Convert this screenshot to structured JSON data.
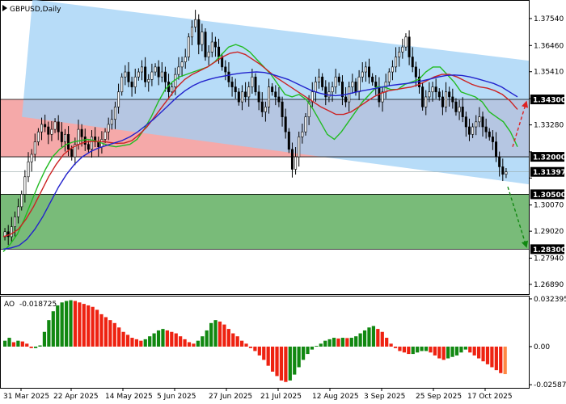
{
  "chart_data": [
    {
      "type": "candlestick",
      "title": "GBPUSD,Daily",
      "ylim": [
        1.265,
        1.3825
      ],
      "x_ticks": [
        "31 Mar 2025",
        "22 Apr 2025",
        "14 May 2025",
        "5 Jun 2025",
        "27 Jun 2025",
        "21 Jul 2025",
        "12 Aug 2025",
        "3 Sep 2025",
        "25 Sep 2025",
        "17 Oct 2025"
      ],
      "y_ticks": [
        "1.37540",
        "1.36460",
        "1.35410",
        "1.34330",
        "1.33280",
        "1.32200",
        "1.31150",
        "1.30070",
        "1.29020",
        "1.27940",
        "1.26890"
      ],
      "price_tags": [
        {
          "label": "1.34300",
          "value": 1.343
        },
        {
          "label": "1.32000",
          "value": 1.32
        },
        {
          "label": "1.31397",
          "value": 1.31397
        },
        {
          "label": "1.30500",
          "value": 1.305
        },
        {
          "label": "1.28300",
          "value": 1.283
        }
      ],
      "current_price": 1.31397,
      "zones": [
        {
          "name": "resistance-zone",
          "from": 1.32,
          "to": 1.343,
          "color": "#f4a0a0"
        },
        {
          "name": "support-zone",
          "from": 1.283,
          "to": 1.305,
          "color": "#6ab46a"
        }
      ],
      "channel": {
        "upper": [
          [
            0.06,
            1.383
          ],
          [
            1.0,
            1.3585
          ]
        ],
        "lower": [
          [
            0.04,
            1.336
          ],
          [
            1.0,
            1.309
          ]
        ],
        "color": "#9fd0f5"
      },
      "closes": [
        1.29,
        1.288,
        1.292,
        1.296,
        1.3,
        1.305,
        1.312,
        1.318,
        1.321,
        1.326,
        1.33,
        1.333,
        1.332,
        1.329,
        1.331,
        1.334,
        1.33,
        1.326,
        1.329,
        1.323,
        1.32,
        1.325,
        1.331,
        1.328,
        1.325,
        1.323,
        1.328,
        1.326,
        1.324,
        1.327,
        1.33,
        1.333,
        1.335,
        1.34,
        1.346,
        1.352,
        1.354,
        1.35,
        1.348,
        1.352,
        1.354,
        1.356,
        1.35,
        1.351,
        1.354,
        1.356,
        1.352,
        1.354,
        1.35,
        1.346,
        1.348,
        1.353,
        1.356,
        1.358,
        1.36,
        1.368,
        1.372,
        1.375,
        1.365,
        1.37,
        1.36,
        1.362,
        1.366,
        1.364,
        1.36,
        1.356,
        1.354,
        1.35,
        1.348,
        1.346,
        1.342,
        1.346,
        1.344,
        1.348,
        1.352,
        1.346,
        1.342,
        1.338,
        1.34,
        1.348,
        1.346,
        1.344,
        1.342,
        1.336,
        1.33,
        1.323,
        1.315,
        1.32,
        1.328,
        1.33,
        1.336,
        1.342,
        1.346,
        1.35,
        1.352,
        1.348,
        1.344,
        1.346,
        1.348,
        1.352,
        1.35,
        1.344,
        1.342,
        1.348,
        1.35,
        1.346,
        1.352,
        1.354,
        1.356,
        1.352,
        1.35,
        1.348,
        1.342,
        1.346,
        1.35,
        1.354,
        1.356,
        1.36,
        1.362,
        1.364,
        1.368,
        1.36,
        1.356,
        1.352,
        1.348,
        1.34,
        1.344,
        1.346,
        1.348,
        1.346,
        1.344,
        1.34,
        1.346,
        1.344,
        1.342,
        1.338,
        1.34,
        1.336,
        1.332,
        1.329,
        1.332,
        1.334,
        1.336,
        1.332,
        1.33,
        1.328,
        1.326,
        1.32,
        1.316,
        1.313,
        1.314
      ],
      "ma_series": [
        {
          "name": "ma-fast",
          "color": "#22bb22",
          "values": [
            1.282,
            1.285,
            1.289,
            1.295,
            1.302,
            1.309,
            1.315,
            1.32,
            1.323,
            1.325,
            1.326,
            1.3265,
            1.327,
            1.3265,
            1.3255,
            1.3245,
            1.324,
            1.3245,
            1.325,
            1.327,
            1.331,
            1.336,
            1.342,
            1.347,
            1.35,
            1.352,
            1.353,
            1.354,
            1.355,
            1.356,
            1.358,
            1.361,
            1.364,
            1.365,
            1.364,
            1.362,
            1.359,
            1.356,
            1.353,
            1.349,
            1.345,
            1.344,
            1.345,
            1.343,
            1.339,
            1.334,
            1.329,
            1.327,
            1.33,
            1.334,
            1.338,
            1.342,
            1.345,
            1.348,
            1.348,
            1.347,
            1.347,
            1.349,
            1.35,
            1.351,
            1.354,
            1.356,
            1.356,
            1.353,
            1.35,
            1.346,
            1.345,
            1.344,
            1.342,
            1.338,
            1.336,
            1.334,
            1.33,
            1.324
          ]
        },
        {
          "name": "ma-mid",
          "color": "#cc2222",
          "values": [
            1.288,
            1.289,
            1.291,
            1.295,
            1.3,
            1.306,
            1.312,
            1.317,
            1.321,
            1.3235,
            1.325,
            1.326,
            1.3262,
            1.3262,
            1.3258,
            1.3254,
            1.3255,
            1.3265,
            1.329,
            1.332,
            1.336,
            1.34,
            1.344,
            1.348,
            1.351,
            1.353,
            1.3545,
            1.356,
            1.358,
            1.36,
            1.3615,
            1.362,
            1.361,
            1.359,
            1.357,
            1.3545,
            1.352,
            1.35,
            1.348,
            1.346,
            1.344,
            1.342,
            1.34,
            1.3385,
            1.337,
            1.337,
            1.338,
            1.34,
            1.342,
            1.344,
            1.3455,
            1.3465,
            1.347,
            1.3475,
            1.348,
            1.349,
            1.3505,
            1.352,
            1.353,
            1.353,
            1.352,
            1.3505,
            1.349,
            1.348,
            1.3475,
            1.3465,
            1.345,
            1.3425,
            1.339
          ]
        },
        {
          "name": "ma-slow",
          "color": "#2222cc",
          "values": [
            1.283,
            1.2835,
            1.2845,
            1.287,
            1.291,
            1.296,
            1.302,
            1.308,
            1.313,
            1.317,
            1.32,
            1.322,
            1.3235,
            1.3245,
            1.3255,
            1.3265,
            1.328,
            1.33,
            1.3325,
            1.335,
            1.338,
            1.341,
            1.344,
            1.3465,
            1.3485,
            1.35,
            1.351,
            1.3518,
            1.3524,
            1.353,
            1.3535,
            1.3538,
            1.354,
            1.3538,
            1.353,
            1.352,
            1.351,
            1.3495,
            1.348,
            1.3465,
            1.3455,
            1.3448,
            1.3445,
            1.3448,
            1.3455,
            1.3462,
            1.3468,
            1.3474,
            1.348,
            1.3486,
            1.349,
            1.3494,
            1.3498,
            1.3505,
            1.3512,
            1.352,
            1.3526,
            1.3528,
            1.3526,
            1.352,
            1.3512,
            1.3503,
            1.3494,
            1.348,
            1.346,
            1.344
          ]
        }
      ],
      "forecast_arrows": [
        {
          "name": "forecast-up-arrow",
          "from": 1.324,
          "to": 1.342,
          "color": "#dd2222"
        },
        {
          "name": "forecast-down-arrow",
          "from": 1.308,
          "to": 1.284,
          "color": "#118811"
        }
      ]
    },
    {
      "type": "bar",
      "title": "AO -0.018725",
      "indicator_label": "AO",
      "indicator_value": "-0.018725",
      "y_ticks": [
        "0.032395",
        "0.00",
        "-0.025877"
      ],
      "ylim": [
        -0.028,
        0.034
      ],
      "values": [
        0.004,
        0.006,
        0.003,
        0.004,
        0.0035,
        0.002,
        -0.001,
        -0.001,
        0.0008,
        0.01,
        0.018,
        0.024,
        0.028,
        0.03,
        0.031,
        0.0315,
        0.031,
        0.03,
        0.029,
        0.028,
        0.027,
        0.025,
        0.022,
        0.02,
        0.018,
        0.016,
        0.013,
        0.01,
        0.008,
        0.006,
        0.005,
        0.004,
        0.005,
        0.007,
        0.009,
        0.011,
        0.012,
        0.011,
        0.01,
        0.009,
        0.007,
        0.005,
        0.003,
        0.002,
        0.004,
        0.007,
        0.011,
        0.016,
        0.018,
        0.017,
        0.015,
        0.012,
        0.009,
        0.007,
        0.004,
        0.002,
        -0.001,
        -0.003,
        -0.006,
        -0.009,
        -0.013,
        -0.017,
        -0.02,
        -0.023,
        -0.024,
        -0.023,
        -0.019,
        -0.014,
        -0.009,
        -0.005,
        -0.002,
        0.0005,
        0.002,
        0.004,
        0.005,
        0.006,
        0.0055,
        0.006,
        0.0058,
        0.006,
        0.007,
        0.009,
        0.011,
        0.013,
        0.014,
        0.012,
        0.01,
        0.006,
        0.002,
        -0.001,
        -0.003,
        -0.004,
        -0.005,
        -0.005,
        -0.004,
        -0.003,
        -0.003,
        -0.004,
        -0.006,
        -0.008,
        -0.009,
        -0.008,
        -0.007,
        -0.006,
        -0.004,
        -0.002,
        -0.004,
        -0.006,
        -0.008,
        -0.01,
        -0.012,
        -0.014,
        -0.016,
        -0.018,
        -0.0187
      ],
      "colors": {
        "up": "#118811",
        "down": "#ee2211"
      }
    }
  ]
}
